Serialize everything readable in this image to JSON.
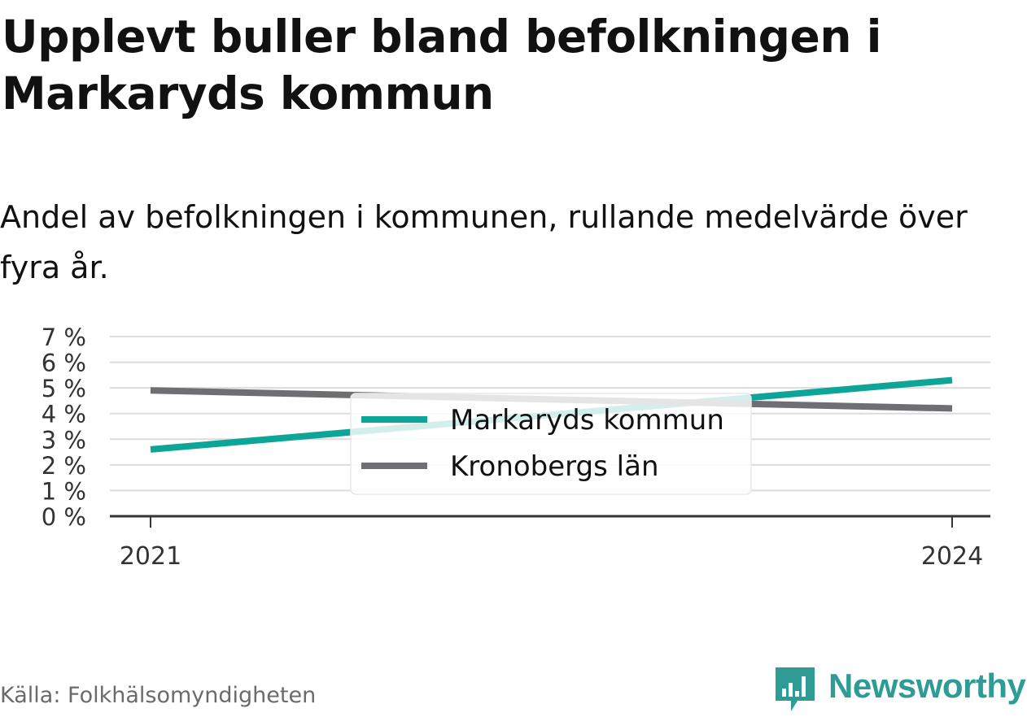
{
  "title": "Upplevt buller bland befolkningen i Markaryds kommun",
  "subtitle": "Andel av befolkningen i kommunen, rullande medelvärde över fyra år.",
  "source": "Källa: Folkhälsomyndigheten",
  "brand": {
    "name": "Newsworthy",
    "color": "#2e9c94",
    "icon": "newsworthy-logo-icon"
  },
  "chart_data": {
    "type": "line",
    "x": [
      2021,
      2024
    ],
    "ylim": [
      0,
      7
    ],
    "yticks": [
      "0 %",
      "1 %",
      "2 %",
      "3 %",
      "4 %",
      "5 %",
      "6 %",
      "7 %"
    ],
    "xticks": [
      "2021",
      "2024"
    ],
    "grid": true,
    "legend": "center",
    "series": [
      {
        "name": "Markaryds kommun",
        "color": "#0da597",
        "values": [
          2.6,
          5.3
        ]
      },
      {
        "name": "Kronobergs län",
        "color": "#6e6e73",
        "values": [
          4.9,
          4.2
        ]
      }
    ]
  }
}
